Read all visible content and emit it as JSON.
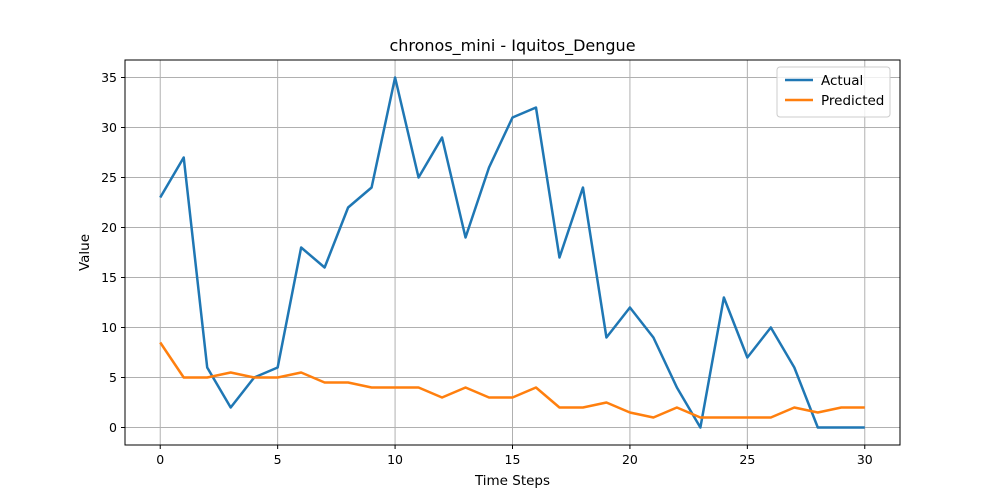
{
  "chart_data": {
    "type": "line",
    "title": "chronos_mini - Iquitos_Dengue",
    "xlabel": "Time Steps",
    "ylabel": "Value",
    "xlim": [
      -1.5,
      31.5
    ],
    "ylim": [
      -1.75,
      36.75
    ],
    "xticks": [
      0,
      5,
      10,
      15,
      20,
      25,
      30
    ],
    "yticks": [
      0,
      5,
      10,
      15,
      20,
      25,
      30,
      35
    ],
    "grid": true,
    "legend_position": "top-right",
    "x": [
      0,
      1,
      2,
      3,
      4,
      5,
      6,
      7,
      8,
      9,
      10,
      11,
      12,
      13,
      14,
      15,
      16,
      17,
      18,
      19,
      20,
      21,
      22,
      23,
      24,
      25,
      26,
      27,
      28,
      29,
      30
    ],
    "series": [
      {
        "name": "Actual",
        "color": "#1f77b4",
        "values": [
          23,
          27,
          6,
          2,
          5,
          6,
          18,
          16,
          22,
          24,
          35,
          25,
          29,
          19,
          26,
          31,
          32,
          17,
          24,
          9,
          12,
          9,
          4,
          0,
          13,
          7,
          10,
          6,
          0,
          0,
          0
        ]
      },
      {
        "name": "Predicted",
        "color": "#ff7f0e",
        "values": [
          8.5,
          5,
          5,
          5.5,
          5,
          5,
          5.5,
          4.5,
          4.5,
          4,
          4,
          4,
          3,
          4,
          3,
          3,
          4,
          2,
          2,
          2.5,
          1.5,
          1,
          2,
          1,
          1,
          1,
          1,
          2,
          1.5,
          2,
          2
        ]
      }
    ]
  }
}
